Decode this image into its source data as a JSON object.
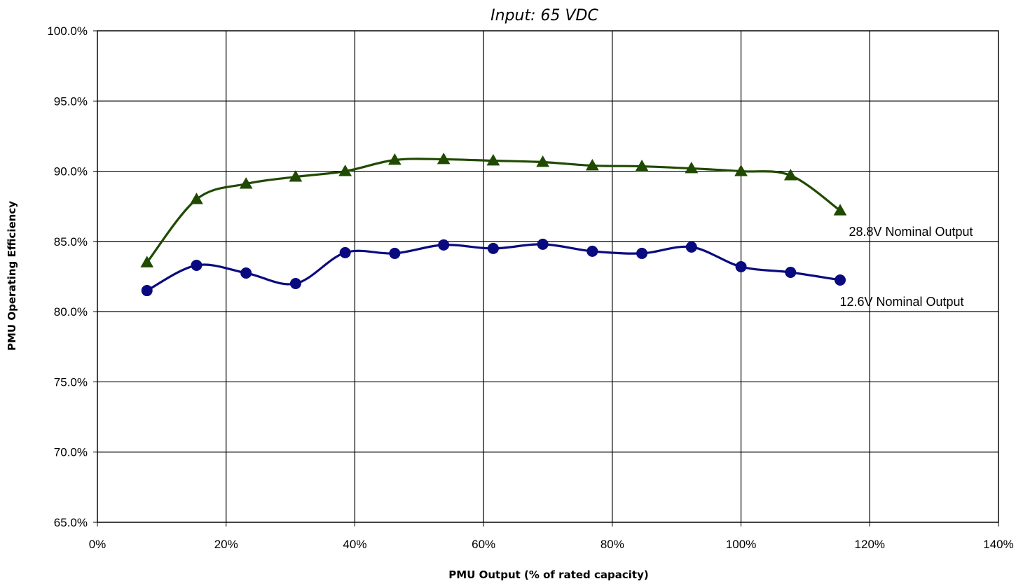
{
  "chart_data": {
    "type": "line",
    "title": "Input: 65 VDC",
    "xlabel": "PMU Output (% of rated capacity)",
    "ylabel": "PMU Operating Efficiency",
    "xlim": [
      0,
      140
    ],
    "ylim": [
      65,
      100
    ],
    "x_ticks": [
      0,
      20,
      40,
      60,
      80,
      100,
      120,
      140
    ],
    "x_tick_labels": [
      "0%",
      "20%",
      "40%",
      "60%",
      "80%",
      "100%",
      "120%",
      "140%"
    ],
    "y_ticks": [
      65,
      70,
      75,
      80,
      85,
      90,
      95,
      100
    ],
    "y_tick_labels": [
      "65.0%",
      "70.0%",
      "75.0%",
      "80.0%",
      "85.0%",
      "90.0%",
      "95.0%",
      "100.0%"
    ],
    "grid": true,
    "legend": "none",
    "series": [
      {
        "name": "28.8V Nominal Output",
        "marker": "triangle",
        "color": "#1f4a00",
        "x": [
          7.7,
          15.4,
          23.1,
          30.8,
          38.5,
          46.2,
          53.8,
          61.5,
          69.2,
          76.9,
          84.6,
          92.3,
          100.0,
          107.7,
          115.4
        ],
        "y": [
          83.5,
          88.0,
          89.1,
          89.6,
          90.0,
          90.8,
          90.85,
          90.75,
          90.65,
          90.4,
          90.35,
          90.2,
          90.0,
          89.7,
          87.2
        ]
      },
      {
        "name": "12.6V Nominal Output",
        "marker": "circle",
        "color": "#0a0a80",
        "x": [
          7.7,
          15.4,
          23.1,
          30.8,
          38.5,
          46.2,
          53.8,
          61.5,
          69.2,
          76.9,
          84.6,
          92.3,
          100.0,
          107.7,
          115.4
        ],
        "y": [
          81.5,
          83.3,
          82.75,
          82.0,
          84.2,
          84.15,
          84.75,
          84.5,
          84.8,
          84.3,
          84.15,
          84.6,
          83.2,
          82.8,
          82.25
        ]
      }
    ]
  }
}
